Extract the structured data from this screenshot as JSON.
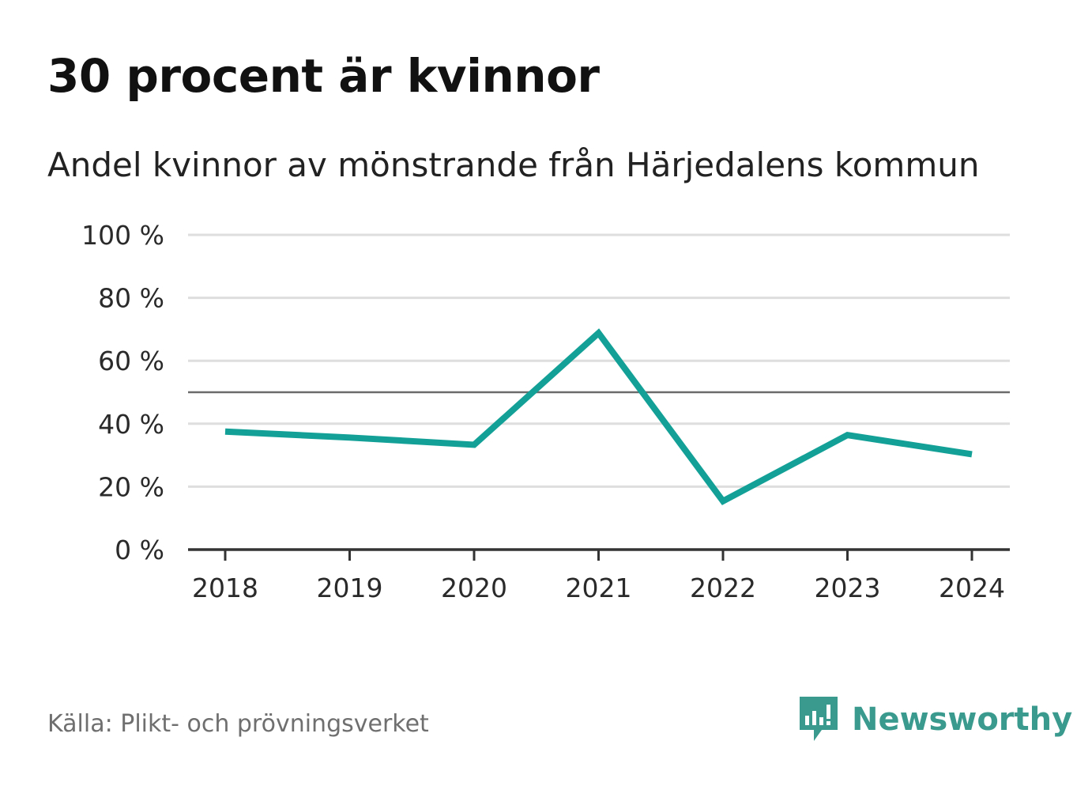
{
  "title": "30 procent är kvinnor",
  "subtitle": "Andel kvinnor av mönstrande från Härjedalens kommun",
  "source": "Källa: Plikt- och prövningsverket",
  "brand": {
    "name": "Newsworthy",
    "icon": "newsworthy-logo-icon",
    "color": "#3a9a8d"
  },
  "colors": {
    "series": "#13a197",
    "grid": "#dedede",
    "reference_line": "#6b6b6b",
    "axis": "#333333"
  },
  "chart_data": {
    "type": "line",
    "title": "30 procent är kvinnor",
    "subtitle": "Andel kvinnor av mönstrande från Härjedalens kommun",
    "xlabel": "",
    "ylabel": "",
    "x": [
      "2018",
      "2019",
      "2020",
      "2021",
      "2022",
      "2023",
      "2024"
    ],
    "series": [
      {
        "name": "Andel kvinnor",
        "values": [
          37.5,
          35.6,
          33.3,
          68.8,
          15.4,
          36.4,
          30.3
        ]
      }
    ],
    "ylim": [
      0,
      100
    ],
    "yticks": [
      0,
      20,
      40,
      60,
      80,
      100
    ],
    "ytick_labels": [
      "0 %",
      "20 %",
      "40 %",
      "60 %",
      "80 %",
      "100 %"
    ],
    "reference_line": 50,
    "grid": true,
    "legend": "none"
  }
}
